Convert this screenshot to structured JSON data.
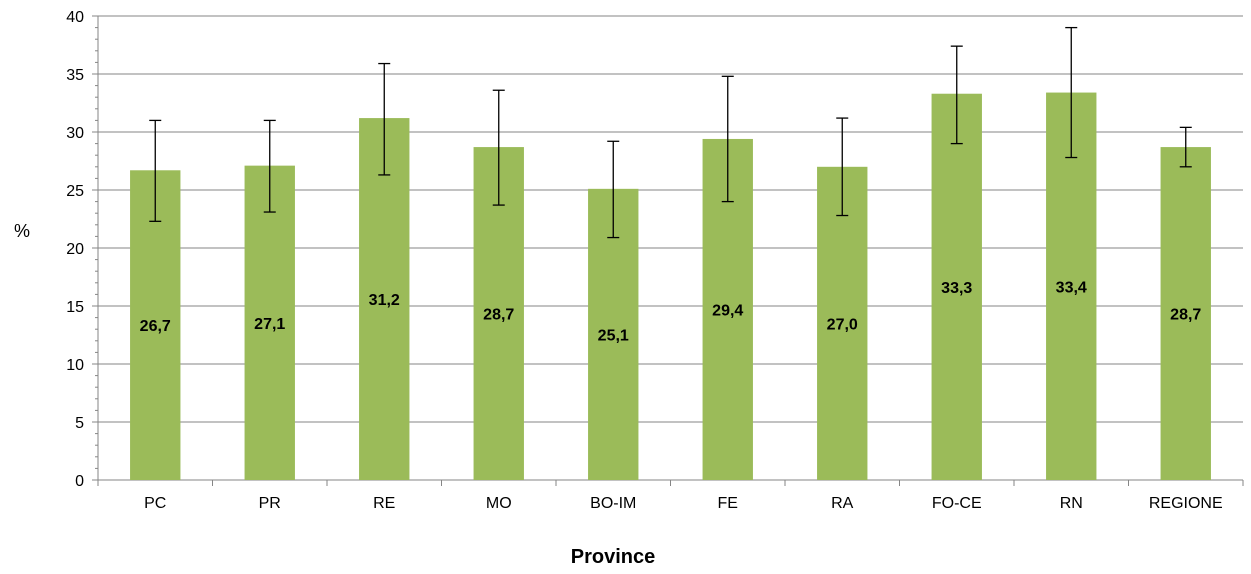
{
  "chart_data": {
    "type": "bar",
    "title": "",
    "xlabel": "Province",
    "ylabel": "%",
    "categories": [
      "PC",
      "PR",
      "RE",
      "MO",
      "BO-IM",
      "FE",
      "RA",
      "FO-CE",
      "RN",
      "REGIONE"
    ],
    "values": [
      26.7,
      27.1,
      31.2,
      28.7,
      25.1,
      29.4,
      27.0,
      33.3,
      33.4,
      28.7
    ],
    "data_labels": [
      "26,7",
      "27,1",
      "31,2",
      "28,7",
      "25,1",
      "29,4",
      "27,0",
      "33,3",
      "33,4",
      "28,7"
    ],
    "error_low": [
      22.3,
      23.1,
      26.3,
      23.7,
      20.9,
      24.0,
      22.8,
      29.0,
      27.8,
      27.0
    ],
    "error_high": [
      31.0,
      31.0,
      35.9,
      33.6,
      29.2,
      34.8,
      31.2,
      37.4,
      39.0,
      30.4
    ],
    "ylim": [
      0,
      40
    ],
    "yticks": [
      0,
      5,
      10,
      15,
      20,
      25,
      30,
      35,
      40
    ],
    "grid": true,
    "legend": "none",
    "bar_color": "#9bbb59",
    "grid_color": "#868686",
    "axis_color": "#868686"
  }
}
